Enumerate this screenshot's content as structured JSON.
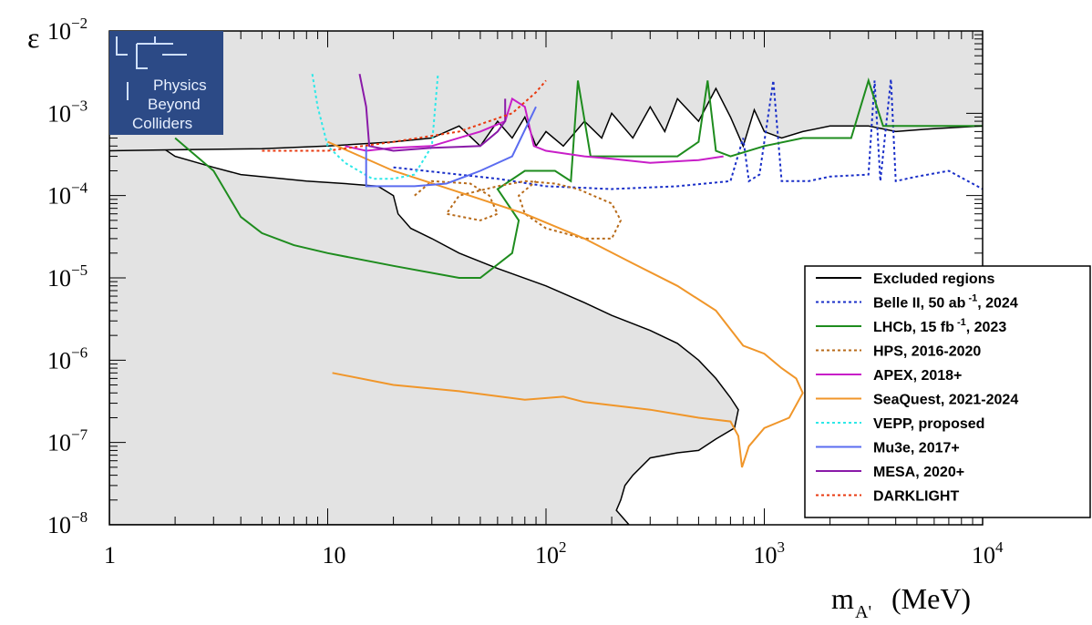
{
  "chart_data": {
    "type": "line",
    "title": "",
    "xlabel": "m_A' (MeV)",
    "xlabel_main": "m",
    "xlabel_sub": "A'",
    "xlabel_unit": "(MeV)",
    "ylabel": "ε",
    "xscale": "log",
    "yscale": "log",
    "xlim": [
      1,
      10000
    ],
    "ylim": [
      1e-08,
      0.01
    ],
    "x_ticks": [
      {
        "value": 1,
        "label": "1"
      },
      {
        "value": 10,
        "label": "10"
      },
      {
        "value": 100,
        "label": "10",
        "exp": "2"
      },
      {
        "value": 1000,
        "label": "10",
        "exp": "3"
      },
      {
        "value": 10000,
        "label": "10",
        "exp": "4"
      }
    ],
    "y_ticks": [
      {
        "value": 1e-08,
        "label": "10",
        "exp": "−8"
      },
      {
        "value": 1e-07,
        "label": "10",
        "exp": "−7"
      },
      {
        "value": 1e-06,
        "label": "10",
        "exp": "−6"
      },
      {
        "value": 1e-05,
        "label": "10",
        "exp": "−5"
      },
      {
        "value": 0.0001,
        "label": "10",
        "exp": "−4"
      },
      {
        "value": 0.001,
        "label": "10",
        "exp": "−3"
      },
      {
        "value": 0.01,
        "label": "10",
        "exp": "−2"
      }
    ],
    "logo": {
      "lines": [
        "Physics",
        "Beyond",
        "Colliders"
      ]
    },
    "excluded_lower": [
      [
        1,
        1e-08
      ],
      [
        1,
        0.00035
      ],
      [
        1.5,
        0.0005
      ],
      [
        2,
        0.0003
      ],
      [
        3,
        0.00022
      ],
      [
        4,
        0.00018
      ],
      [
        8,
        0.00015
      ],
      [
        12,
        0.00014
      ],
      [
        17,
        0.00013
      ],
      [
        20,
        0.0001
      ],
      [
        21,
        6e-05
      ],
      [
        24,
        4e-05
      ],
      [
        30,
        3e-05
      ],
      [
        40,
        2e-05
      ],
      [
        60,
        1.3e-05
      ],
      [
        100,
        8e-06
      ],
      [
        150,
        5e-06
      ],
      [
        200,
        3.5e-06
      ],
      [
        300,
        2.3e-06
      ],
      [
        400,
        1.6e-06
      ],
      [
        500,
        1e-06
      ],
      [
        600,
        6e-07
      ],
      [
        700,
        3.5e-07
      ],
      [
        760,
        2.5e-07
      ],
      [
        730,
        1.5e-07
      ],
      [
        600,
        1.1e-07
      ],
      [
        500,
        8e-08
      ],
      [
        400,
        7.5e-08
      ],
      [
        300,
        6.5e-08
      ],
      [
        250,
        4e-08
      ],
      [
        230,
        3e-08
      ],
      [
        220,
        2e-08
      ],
      [
        210,
        1.5e-08
      ],
      [
        240,
        1e-08
      ]
    ],
    "excluded_upper": [
      [
        1,
        0.00035
      ],
      [
        2,
        0.00036
      ],
      [
        5,
        0.00037
      ],
      [
        10,
        0.0004
      ],
      [
        20,
        0.00045
      ],
      [
        30,
        0.0005
      ],
      [
        40,
        0.0007
      ],
      [
        50,
        0.0004
      ],
      [
        60,
        0.0008
      ],
      [
        70,
        0.0005
      ],
      [
        80,
        0.0009
      ],
      [
        90,
        0.0004
      ],
      [
        100,
        0.0006
      ],
      [
        120,
        0.0004
      ],
      [
        150,
        0.0008
      ],
      [
        180,
        0.0005
      ],
      [
        200,
        0.001
      ],
      [
        250,
        0.0005
      ],
      [
        300,
        0.0012
      ],
      [
        350,
        0.0006
      ],
      [
        400,
        0.0015
      ],
      [
        500,
        0.0008
      ],
      [
        600,
        0.002
      ],
      [
        700,
        0.0009
      ],
      [
        800,
        0.0004
      ],
      [
        900,
        0.0011
      ],
      [
        1000,
        0.0006
      ],
      [
        1200,
        0.0005
      ],
      [
        1500,
        0.0006
      ],
      [
        2000,
        0.0007
      ],
      [
        3000,
        0.0007
      ],
      [
        4000,
        0.0006
      ],
      [
        6000,
        0.00065
      ],
      [
        10000,
        0.0007
      ]
    ],
    "series": [
      {
        "name": "Excluded regions",
        "label": "Excluded regions",
        "color": "#000000",
        "dash": "",
        "points": []
      },
      {
        "name": "Belle II",
        "label": "Belle II, 50 ab",
        "sup": "-1",
        "label_tail": ", 2024",
        "color": "#1a2fc8",
        "dash": "3,3",
        "points": [
          [
            20,
            0.00022
          ],
          [
            40,
            0.00018
          ],
          [
            60,
            0.00016
          ],
          [
            100,
            0.00013
          ],
          [
            200,
            0.00012
          ],
          [
            400,
            0.00013
          ],
          [
            700,
            0.00015
          ],
          [
            800,
            0.0005
          ],
          [
            850,
            0.00015
          ],
          [
            950,
            0.00018
          ],
          [
            1100,
            0.0025
          ],
          [
            1200,
            0.00015
          ],
          [
            1600,
            0.00015
          ],
          [
            2000,
            0.00017
          ],
          [
            3000,
            0.00018
          ],
          [
            3200,
            0.0025
          ],
          [
            3400,
            0.00015
          ],
          [
            3800,
            0.0026
          ],
          [
            4000,
            0.00015
          ],
          [
            5000,
            0.00017
          ],
          [
            7000,
            0.0002
          ],
          [
            10000,
            0.00012
          ]
        ]
      },
      {
        "name": "LHCb",
        "label": "LHCb, 15 fb",
        "sup": "-1",
        "label_tail": ", 2023",
        "color": "#1e8c1e",
        "dash": "",
        "points": [
          [
            2,
            0.0005
          ],
          [
            3,
            0.0002
          ],
          [
            4,
            5.5e-05
          ],
          [
            5,
            3.5e-05
          ],
          [
            7,
            2.5e-05
          ],
          [
            10,
            2e-05
          ],
          [
            20,
            1.4e-05
          ],
          [
            40,
            1e-05
          ],
          [
            50,
            1e-05
          ],
          [
            70,
            2e-05
          ],
          [
            75,
            5e-05
          ],
          [
            60,
            0.00012
          ],
          [
            80,
            0.0002
          ],
          [
            110,
            0.0002
          ],
          [
            130,
            0.00015
          ],
          [
            140,
            0.0025
          ],
          [
            160,
            0.0003
          ],
          [
            400,
            0.0003
          ],
          [
            500,
            0.00045
          ],
          [
            550,
            0.0025
          ],
          [
            600,
            0.00035
          ],
          [
            700,
            0.0003
          ],
          [
            1000,
            0.0004
          ],
          [
            1500,
            0.0005
          ],
          [
            2500,
            0.0005
          ],
          [
            3000,
            0.0025
          ],
          [
            3500,
            0.0007
          ],
          [
            10000,
            0.0007
          ]
        ]
      },
      {
        "name": "HPS",
        "label": "HPS, 2016-2020",
        "color": "#b86b1a",
        "dash": "3,3",
        "points": [
          [
            25,
            0.0001
          ],
          [
            30,
            0.00015
          ],
          [
            45,
            0.00014
          ],
          [
            55,
            0.0001
          ],
          [
            60,
            6e-05
          ],
          [
            50,
            5e-05
          ],
          [
            35,
            6e-05
          ],
          [
            40,
            0.0001
          ],
          [
            60,
            0.00013
          ],
          [
            80,
            0.00015
          ],
          [
            110,
            0.00014
          ],
          [
            140,
            0.00012
          ],
          [
            200,
            8e-05
          ],
          [
            220,
            5e-05
          ],
          [
            200,
            3e-05
          ],
          [
            150,
            3e-05
          ],
          [
            100,
            4e-05
          ],
          [
            80,
            6e-05
          ],
          [
            75,
            0.0001
          ],
          [
            90,
            0.00015
          ]
        ]
      },
      {
        "name": "APEX",
        "label": "APEX, 2018+",
        "color": "#c81ec8",
        "dash": "",
        "points": [
          [
            12,
            0.0004
          ],
          [
            15,
            0.00035
          ],
          [
            20,
            0.00038
          ],
          [
            30,
            0.0004
          ],
          [
            50,
            0.0006
          ],
          [
            65,
            0.0008
          ],
          [
            70,
            0.0015
          ],
          [
            80,
            0.0012
          ],
          [
            88,
            0.0004
          ],
          [
            100,
            0.00035
          ],
          [
            150,
            0.0003
          ],
          [
            200,
            0.00028
          ],
          [
            300,
            0.00025
          ],
          [
            500,
            0.00027
          ],
          [
            650,
            0.0003
          ]
        ]
      },
      {
        "name": "SeaQuest",
        "label": "SeaQuest, 2021-2024",
        "color": "#f0962a",
        "dash": "",
        "points": [
          [
            10,
            0.00045
          ],
          [
            20,
            0.0002
          ],
          [
            40,
            0.00011
          ],
          [
            80,
            6e-05
          ],
          [
            150,
            3e-05
          ],
          [
            250,
            1.5e-05
          ],
          [
            400,
            8e-06
          ],
          [
            600,
            4e-06
          ],
          [
            800,
            1.5e-06
          ],
          [
            1000,
            1.2e-06
          ],
          [
            1200,
            8e-07
          ],
          [
            1400,
            6e-07
          ],
          [
            1500,
            4e-07
          ],
          [
            1300,
            2e-07
          ],
          [
            1000,
            1.5e-07
          ],
          [
            850,
            9e-08
          ],
          [
            790,
            5e-08
          ],
          [
            760,
            1.2e-07
          ],
          [
            700,
            1.8e-07
          ],
          [
            500,
            2e-07
          ],
          [
            300,
            2.5e-07
          ],
          [
            150,
            3.1e-07
          ],
          [
            120,
            3.6e-07
          ],
          [
            80,
            3.3e-07
          ],
          [
            40,
            4.2e-07
          ],
          [
            20,
            5e-07
          ],
          [
            10.5,
            7e-07
          ]
        ]
      },
      {
        "name": "VEPP",
        "label": "VEPP, proposed",
        "color": "#2ee8e8",
        "dash": "3,3",
        "points": [
          [
            8.5,
            0.003
          ],
          [
            9,
            0.0012
          ],
          [
            10,
            0.0004
          ],
          [
            12,
            0.00025
          ],
          [
            16,
            0.00016
          ],
          [
            20,
            0.00016
          ],
          [
            25,
            0.00018
          ],
          [
            30,
            0.0004
          ],
          [
            32,
            0.003
          ]
        ]
      },
      {
        "name": "Mu3e",
        "label": "Mu3e, 2017+",
        "color": "#5b6cf0",
        "dash": "",
        "points": [
          [
            15,
            0.0004
          ],
          [
            15,
            0.00013
          ],
          [
            25,
            0.00013
          ],
          [
            35,
            0.00014
          ],
          [
            50,
            0.0002
          ],
          [
            70,
            0.0003
          ],
          [
            90,
            0.0012
          ]
        ]
      },
      {
        "name": "MESA",
        "label": "MESA, 2020+",
        "color": "#8a1aa8",
        "dash": "",
        "points": [
          [
            14,
            0.003
          ],
          [
            15,
            0.0012
          ],
          [
            15.5,
            0.0004
          ],
          [
            20,
            0.00035
          ],
          [
            30,
            0.00038
          ],
          [
            50,
            0.0004
          ],
          [
            60,
            0.0006
          ],
          [
            65,
            0.0008
          ],
          [
            65,
            0.0015
          ]
        ]
      },
      {
        "name": "DARKLIGHT",
        "label": "DARKLIGHT",
        "color": "#e83a10",
        "dash": "3,3",
        "points": [
          [
            5,
            0.00035
          ],
          [
            10,
            0.00035
          ],
          [
            20,
            0.00045
          ],
          [
            40,
            0.0006
          ],
          [
            70,
            0.001
          ],
          [
            90,
            0.0018
          ],
          [
            100,
            0.0025
          ]
        ]
      }
    ]
  }
}
